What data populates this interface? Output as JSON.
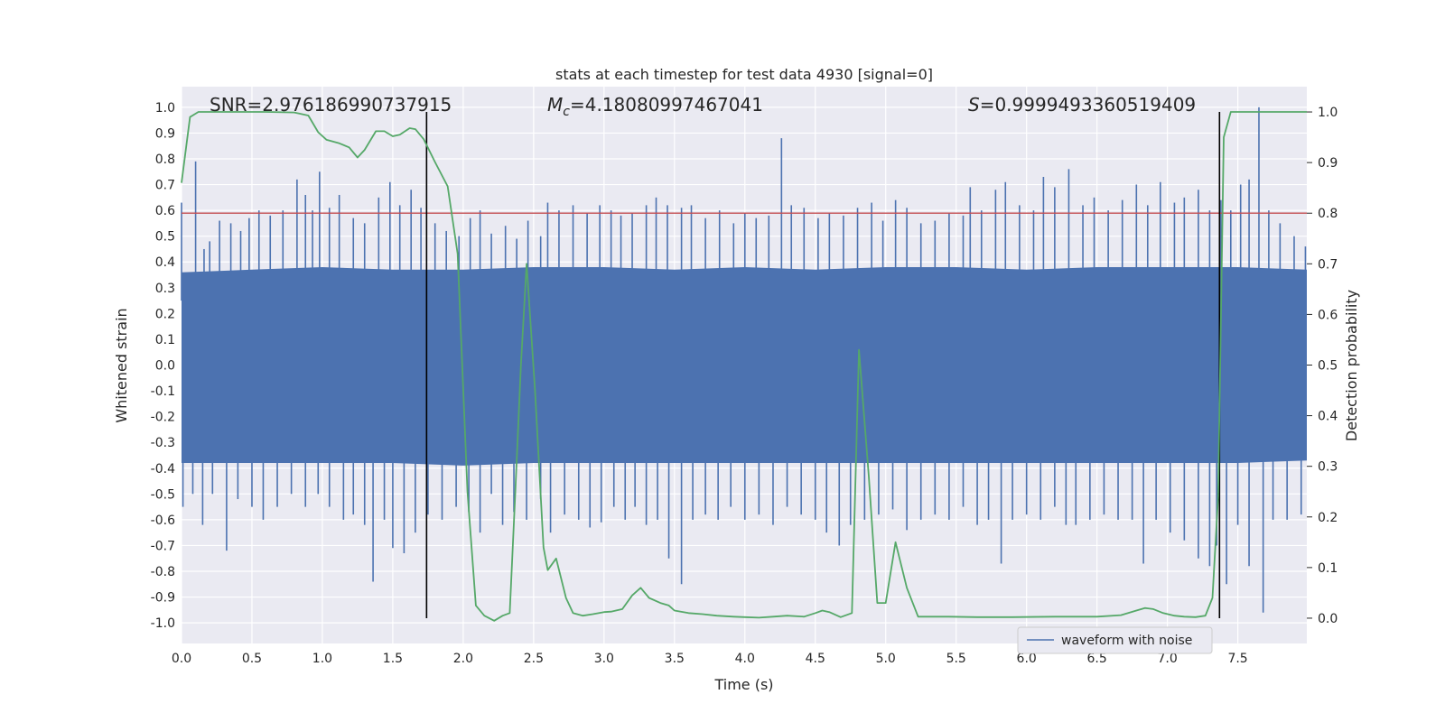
{
  "chart_data": {
    "type": "line",
    "title": "stats at each timestep for test data 4930 [signal=0]",
    "xlabel": "Time (s)",
    "ylabel": "Whitened strain",
    "y2label": "Detection probability",
    "xlim": [
      0.0,
      7.99
    ],
    "ylim": [
      -1.08,
      1.08
    ],
    "y2lim": [
      -0.05,
      1.05
    ],
    "x_ticks": [
      "0.0",
      "0.5",
      "1.0",
      "1.5",
      "2.0",
      "2.5",
      "3.0",
      "3.5",
      "4.0",
      "4.5",
      "5.0",
      "5.5",
      "6.0",
      "6.5",
      "7.0",
      "7.5"
    ],
    "y_ticks": [
      "1.0",
      "0.9",
      "0.8",
      "0.7",
      "0.6",
      "0.5",
      "0.4",
      "0.3",
      "0.2",
      "0.1",
      "0.0",
      "-0.1",
      "-0.2",
      "-0.3",
      "-0.4",
      "-0.5",
      "-0.6",
      "-0.7",
      "-0.8",
      "-0.9",
      "-1.0"
    ],
    "y2_ticks": [
      "0.0",
      "0.1",
      "0.2",
      "0.3",
      "0.4",
      "0.5",
      "0.6",
      "0.7",
      "0.8",
      "0.9",
      "1.0"
    ],
    "grid": true,
    "legend": {
      "placement": "lower-right",
      "entries": [
        "waveform with noise"
      ]
    },
    "annotations": {
      "snr": "SNR=2.976186990737915",
      "mc_symbol": "M",
      "mc_sub": "c",
      "mc_value": "=4.18080997467041",
      "s_symbol": "S",
      "s_value": "=0.9999493360519409"
    },
    "threshold": 0.8,
    "vlines": [
      1.74,
      7.37
    ],
    "colors": {
      "waveform": "#4c72b0",
      "probability": "#55a868",
      "threshold": "#c44e52",
      "vline": "#000000",
      "panel": "#eaeaf2",
      "grid": "#ffffff"
    },
    "waveform": {
      "name": "waveform with noise",
      "band_upper": [
        [
          0.0,
          0.36
        ],
        [
          0.5,
          0.37
        ],
        [
          1.0,
          0.38
        ],
        [
          1.5,
          0.37
        ],
        [
          2.0,
          0.37
        ],
        [
          2.5,
          0.38
        ],
        [
          3.0,
          0.38
        ],
        [
          3.5,
          0.37
        ],
        [
          4.0,
          0.38
        ],
        [
          4.5,
          0.37
        ],
        [
          5.0,
          0.38
        ],
        [
          5.5,
          0.38
        ],
        [
          6.0,
          0.37
        ],
        [
          6.5,
          0.38
        ],
        [
          7.0,
          0.38
        ],
        [
          7.5,
          0.38
        ],
        [
          7.99,
          0.37
        ]
      ],
      "band_lower": [
        [
          0.0,
          -0.38
        ],
        [
          0.5,
          -0.38
        ],
        [
          1.0,
          -0.38
        ],
        [
          1.5,
          -0.38
        ],
        [
          2.0,
          -0.39
        ],
        [
          2.5,
          -0.38
        ],
        [
          3.0,
          -0.38
        ],
        [
          3.5,
          -0.38
        ],
        [
          4.0,
          -0.38
        ],
        [
          4.5,
          -0.38
        ],
        [
          5.0,
          -0.38
        ],
        [
          5.5,
          -0.38
        ],
        [
          6.0,
          -0.38
        ],
        [
          6.5,
          -0.38
        ],
        [
          7.0,
          -0.38
        ],
        [
          7.5,
          -0.38
        ],
        [
          7.99,
          -0.37
        ]
      ],
      "peaks": [
        [
          0.0,
          0.63
        ],
        [
          0.1,
          0.79
        ],
        [
          0.16,
          0.45
        ],
        [
          0.2,
          0.48
        ],
        [
          0.27,
          0.56
        ],
        [
          0.35,
          0.55
        ],
        [
          0.42,
          0.52
        ],
        [
          0.48,
          0.57
        ],
        [
          0.55,
          0.6
        ],
        [
          0.63,
          0.58
        ],
        [
          0.72,
          0.6
        ],
        [
          0.82,
          0.72
        ],
        [
          0.88,
          0.66
        ],
        [
          0.93,
          0.6
        ],
        [
          0.98,
          0.75
        ],
        [
          1.05,
          0.61
        ],
        [
          1.12,
          0.66
        ],
        [
          1.22,
          0.57
        ],
        [
          1.3,
          0.55
        ],
        [
          1.4,
          0.65
        ],
        [
          1.48,
          0.71
        ],
        [
          1.55,
          0.62
        ],
        [
          1.63,
          0.68
        ],
        [
          1.7,
          0.61
        ],
        [
          1.8,
          0.55
        ],
        [
          1.88,
          0.52
        ],
        [
          1.97,
          0.5
        ],
        [
          2.05,
          0.57
        ],
        [
          2.12,
          0.6
        ],
        [
          2.2,
          0.51
        ],
        [
          2.3,
          0.54
        ],
        [
          2.38,
          0.49
        ],
        [
          2.46,
          0.56
        ],
        [
          2.55,
          0.5
        ],
        [
          2.6,
          0.63
        ],
        [
          2.68,
          0.6
        ],
        [
          2.78,
          0.62
        ],
        [
          2.88,
          0.59
        ],
        [
          2.97,
          0.62
        ],
        [
          3.05,
          0.6
        ],
        [
          3.12,
          0.58
        ],
        [
          3.2,
          0.59
        ],
        [
          3.3,
          0.62
        ],
        [
          3.37,
          0.65
        ],
        [
          3.45,
          0.62
        ],
        [
          3.55,
          0.61
        ],
        [
          3.62,
          0.62
        ],
        [
          3.72,
          0.57
        ],
        [
          3.82,
          0.6
        ],
        [
          3.92,
          0.55
        ],
        [
          4.0,
          0.59
        ],
        [
          4.08,
          0.57
        ],
        [
          4.17,
          0.58
        ],
        [
          4.26,
          0.88
        ],
        [
          4.33,
          0.62
        ],
        [
          4.42,
          0.61
        ],
        [
          4.52,
          0.57
        ],
        [
          4.6,
          0.59
        ],
        [
          4.7,
          0.58
        ],
        [
          4.8,
          0.61
        ],
        [
          4.9,
          0.63
        ],
        [
          4.98,
          0.56
        ],
        [
          5.07,
          0.64
        ],
        [
          5.15,
          0.61
        ],
        [
          5.25,
          0.55
        ],
        [
          5.35,
          0.56
        ],
        [
          5.45,
          0.59
        ],
        [
          5.55,
          0.58
        ],
        [
          5.6,
          0.69
        ],
        [
          5.68,
          0.6
        ],
        [
          5.78,
          0.68
        ],
        [
          5.85,
          0.71
        ],
        [
          5.95,
          0.62
        ],
        [
          6.05,
          0.6
        ],
        [
          6.12,
          0.73
        ],
        [
          6.2,
          0.69
        ],
        [
          6.3,
          0.76
        ],
        [
          6.4,
          0.62
        ],
        [
          6.48,
          0.65
        ],
        [
          6.58,
          0.6
        ],
        [
          6.68,
          0.64
        ],
        [
          6.78,
          0.7
        ],
        [
          6.86,
          0.62
        ],
        [
          6.95,
          0.71
        ],
        [
          7.05,
          0.63
        ],
        [
          7.12,
          0.65
        ],
        [
          7.22,
          0.68
        ],
        [
          7.3,
          0.6
        ],
        [
          7.38,
          0.64
        ],
        [
          7.45,
          0.6
        ],
        [
          7.52,
          0.7
        ],
        [
          7.58,
          0.72
        ],
        [
          7.65,
          1.0
        ],
        [
          7.72,
          0.6
        ],
        [
          7.8,
          0.55
        ],
        [
          7.9,
          0.5
        ],
        [
          7.98,
          0.46
        ]
      ],
      "troughs": [
        [
          0.01,
          -0.55
        ],
        [
          0.08,
          -0.5
        ],
        [
          0.15,
          -0.62
        ],
        [
          0.22,
          -0.5
        ],
        [
          0.32,
          -0.72
        ],
        [
          0.4,
          -0.52
        ],
        [
          0.5,
          -0.55
        ],
        [
          0.58,
          -0.6
        ],
        [
          0.68,
          -0.55
        ],
        [
          0.78,
          -0.5
        ],
        [
          0.88,
          -0.55
        ],
        [
          0.97,
          -0.5
        ],
        [
          1.05,
          -0.55
        ],
        [
          1.15,
          -0.6
        ],
        [
          1.22,
          -0.58
        ],
        [
          1.3,
          -0.62
        ],
        [
          1.36,
          -0.84
        ],
        [
          1.44,
          -0.6
        ],
        [
          1.5,
          -0.71
        ],
        [
          1.58,
          -0.73
        ],
        [
          1.66,
          -0.65
        ],
        [
          1.75,
          -0.58
        ],
        [
          1.85,
          -0.6
        ],
        [
          1.95,
          -0.55
        ],
        [
          2.04,
          -0.57
        ],
        [
          2.12,
          -0.65
        ],
        [
          2.2,
          -0.5
        ],
        [
          2.28,
          -0.62
        ],
        [
          2.36,
          -0.57
        ],
        [
          2.45,
          -0.6
        ],
        [
          2.55,
          -0.52
        ],
        [
          2.62,
          -0.65
        ],
        [
          2.72,
          -0.58
        ],
        [
          2.82,
          -0.6
        ],
        [
          2.9,
          -0.63
        ],
        [
          2.98,
          -0.61
        ],
        [
          3.07,
          -0.55
        ],
        [
          3.15,
          -0.6
        ],
        [
          3.22,
          -0.55
        ],
        [
          3.3,
          -0.62
        ],
        [
          3.38,
          -0.6
        ],
        [
          3.46,
          -0.75
        ],
        [
          3.55,
          -0.85
        ],
        [
          3.63,
          -0.6
        ],
        [
          3.72,
          -0.58
        ],
        [
          3.81,
          -0.6
        ],
        [
          3.9,
          -0.55
        ],
        [
          4.0,
          -0.6
        ],
        [
          4.1,
          -0.58
        ],
        [
          4.2,
          -0.62
        ],
        [
          4.3,
          -0.55
        ],
        [
          4.4,
          -0.58
        ],
        [
          4.5,
          -0.6
        ],
        [
          4.58,
          -0.65
        ],
        [
          4.67,
          -0.7
        ],
        [
          4.75,
          -0.62
        ],
        [
          4.85,
          -0.6
        ],
        [
          4.95,
          -0.58
        ],
        [
          5.05,
          -0.56
        ],
        [
          5.15,
          -0.64
        ],
        [
          5.25,
          -0.6
        ],
        [
          5.35,
          -0.58
        ],
        [
          5.45,
          -0.6
        ],
        [
          5.55,
          -0.55
        ],
        [
          5.65,
          -0.62
        ],
        [
          5.73,
          -0.6
        ],
        [
          5.82,
          -0.77
        ],
        [
          5.9,
          -0.6
        ],
        [
          6.0,
          -0.58
        ],
        [
          6.1,
          -0.6
        ],
        [
          6.2,
          -0.55
        ],
        [
          6.28,
          -0.62
        ],
        [
          6.35,
          -0.62
        ],
        [
          6.45,
          -0.6
        ],
        [
          6.55,
          -0.58
        ],
        [
          6.65,
          -0.6
        ],
        [
          6.75,
          -0.6
        ],
        [
          6.83,
          -0.77
        ],
        [
          6.92,
          -0.6
        ],
        [
          7.02,
          -0.65
        ],
        [
          7.12,
          -0.68
        ],
        [
          7.22,
          -0.75
        ],
        [
          7.3,
          -0.78
        ],
        [
          7.35,
          -0.7
        ],
        [
          7.42,
          -0.85
        ],
        [
          7.5,
          -0.62
        ],
        [
          7.58,
          -0.78
        ],
        [
          7.68,
          -0.96
        ],
        [
          7.75,
          -0.6
        ],
        [
          7.85,
          -0.6
        ],
        [
          7.95,
          -0.58
        ]
      ]
    },
    "probability": {
      "x": [
        0.0,
        0.06,
        0.12,
        0.2,
        0.4,
        0.6,
        0.8,
        0.9,
        0.97,
        1.03,
        1.12,
        1.19,
        1.25,
        1.3,
        1.38,
        1.44,
        1.5,
        1.55,
        1.62,
        1.66,
        1.72,
        1.8,
        1.89,
        1.96,
        2.03,
        2.09,
        2.15,
        2.22,
        2.28,
        2.33,
        2.37,
        2.41,
        2.45,
        2.51,
        2.57,
        2.6,
        2.66,
        2.73,
        2.78,
        2.85,
        2.92,
        3.0,
        3.05,
        3.13,
        3.2,
        3.26,
        3.32,
        3.4,
        3.46,
        3.5,
        3.6,
        3.7,
        3.8,
        3.92,
        4.0,
        4.1,
        4.2,
        4.3,
        4.42,
        4.5,
        4.55,
        4.6,
        4.68,
        4.76,
        4.81,
        4.88,
        4.94,
        5.0,
        5.07,
        5.15,
        5.23,
        5.3,
        5.45,
        5.65,
        5.9,
        6.2,
        6.5,
        6.67,
        6.78,
        6.84,
        6.9,
        6.97,
        7.05,
        7.12,
        7.2,
        7.27,
        7.32,
        7.36,
        7.4,
        7.45,
        7.5,
        7.57,
        7.65,
        7.99
      ],
      "y": [
        0.86,
        0.99,
        1.0,
        1.0,
        1.0,
        1.0,
        0.999,
        0.993,
        0.96,
        0.945,
        0.938,
        0.93,
        0.91,
        0.925,
        0.962,
        0.962,
        0.952,
        0.955,
        0.968,
        0.966,
        0.946,
        0.901,
        0.853,
        0.72,
        0.25,
        0.025,
        0.005,
        -0.005,
        0.005,
        0.01,
        0.25,
        0.5,
        0.7,
        0.45,
        0.14,
        0.095,
        0.118,
        0.04,
        0.01,
        0.005,
        0.008,
        0.012,
        0.013,
        0.018,
        0.045,
        0.06,
        0.04,
        0.03,
        0.025,
        0.015,
        0.01,
        0.008,
        0.005,
        0.003,
        0.002,
        0.001,
        0.003,
        0.005,
        0.003,
        0.01,
        0.015,
        0.012,
        0.002,
        0.01,
        0.53,
        0.28,
        0.03,
        0.03,
        0.15,
        0.06,
        0.003,
        0.003,
        0.003,
        0.002,
        0.002,
        0.003,
        0.003,
        0.006,
        0.015,
        0.02,
        0.018,
        0.01,
        0.005,
        0.003,
        0.002,
        0.005,
        0.04,
        0.24,
        0.95,
        1.0,
        1.0,
        1.0,
        1.0,
        1.0
      ]
    }
  }
}
